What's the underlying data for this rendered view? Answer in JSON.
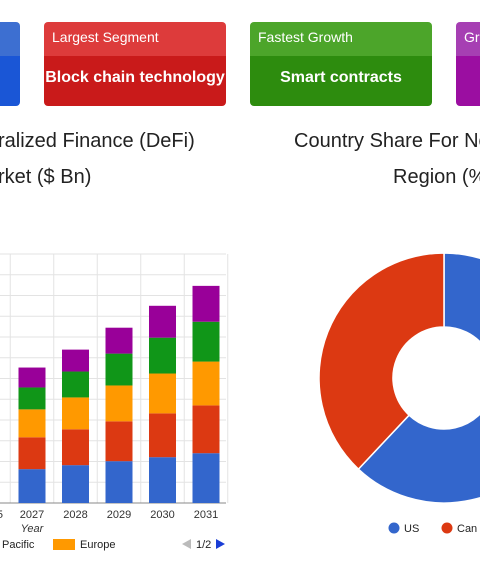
{
  "cards": [
    {
      "head": "",
      "value": "",
      "head_color": "#3d6fd1",
      "body_color": "#1a56d6"
    },
    {
      "head": "Largest Segment",
      "value": "Block chain technology",
      "head_color": "#dd3b3b",
      "body_color": "#c91a1a"
    },
    {
      "head": "Fastest Growth",
      "value": "Smart contracts",
      "head_color": "#4ca52a",
      "body_color": "#2d8c0e"
    },
    {
      "head": "Gr",
      "value": "",
      "head_color": "#a63fb3",
      "body_color": "#9b0ea1"
    }
  ],
  "left_chart": {
    "title_line1": "ralized Finance (DeFi)",
    "title_line2": "rket ($ Bn)"
  },
  "right_chart": {
    "title_line1": "Country Share For No",
    "title_line2": "Region (%"
  },
  "chart_data": [
    {
      "type": "bar",
      "stacked": true,
      "categories": [
        "2027",
        "2028",
        "2029",
        "2030",
        "2031"
      ],
      "partial_category_left": "5",
      "xlabel": "Year",
      "grid": true,
      "series": [
        {
          "name": "",
          "color": "#3366cc",
          "values": [
            17,
            19,
            21,
            23,
            25
          ]
        },
        {
          "name": "",
          "color": "#dc3912",
          "values": [
            16,
            18,
            20,
            22,
            24
          ]
        },
        {
          "name": "Europe",
          "color": "#ff9900",
          "values": [
            14,
            16,
            18,
            20,
            22
          ]
        },
        {
          "name": "",
          "color": "#109618",
          "values": [
            11,
            13,
            16,
            18,
            20
          ]
        },
        {
          "name": "",
          "color": "#990099",
          "values": [
            10,
            11,
            13,
            16,
            18
          ]
        }
      ],
      "legend": {
        "partial_label": "Pacific",
        "page": "1/2"
      }
    },
    {
      "type": "pie",
      "donut": true,
      "slices": [
        {
          "label": "US",
          "value": 62,
          "color": "#3366cc"
        },
        {
          "label": "Can",
          "value": 38,
          "color": "#dc3912"
        }
      ],
      "legend_labels": [
        "US",
        "Can"
      ]
    }
  ]
}
